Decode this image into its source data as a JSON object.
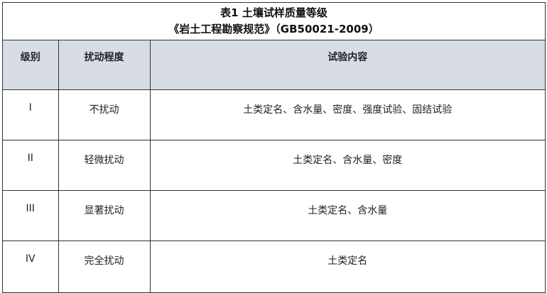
{
  "title": {
    "line1": "表1  土壤试样质量等级",
    "line2": "《岩土工程勘察规范》（GB50021-2009）"
  },
  "columns": [
    "级别",
    "扰动程度",
    "试验内容"
  ],
  "rows": [
    [
      "I",
      "不扰动",
      "土类定名、含水量、密度、强度试验、固结试验"
    ],
    [
      "II",
      "轻微扰动",
      "土类定名、含水量、密度"
    ],
    [
      "III",
      "显著扰动",
      "土类定名、含水量"
    ],
    [
      "IV",
      "完全扰动",
      "土类定名"
    ]
  ],
  "colors": {
    "header_bg": "#d8dce5",
    "border": "#333333"
  }
}
